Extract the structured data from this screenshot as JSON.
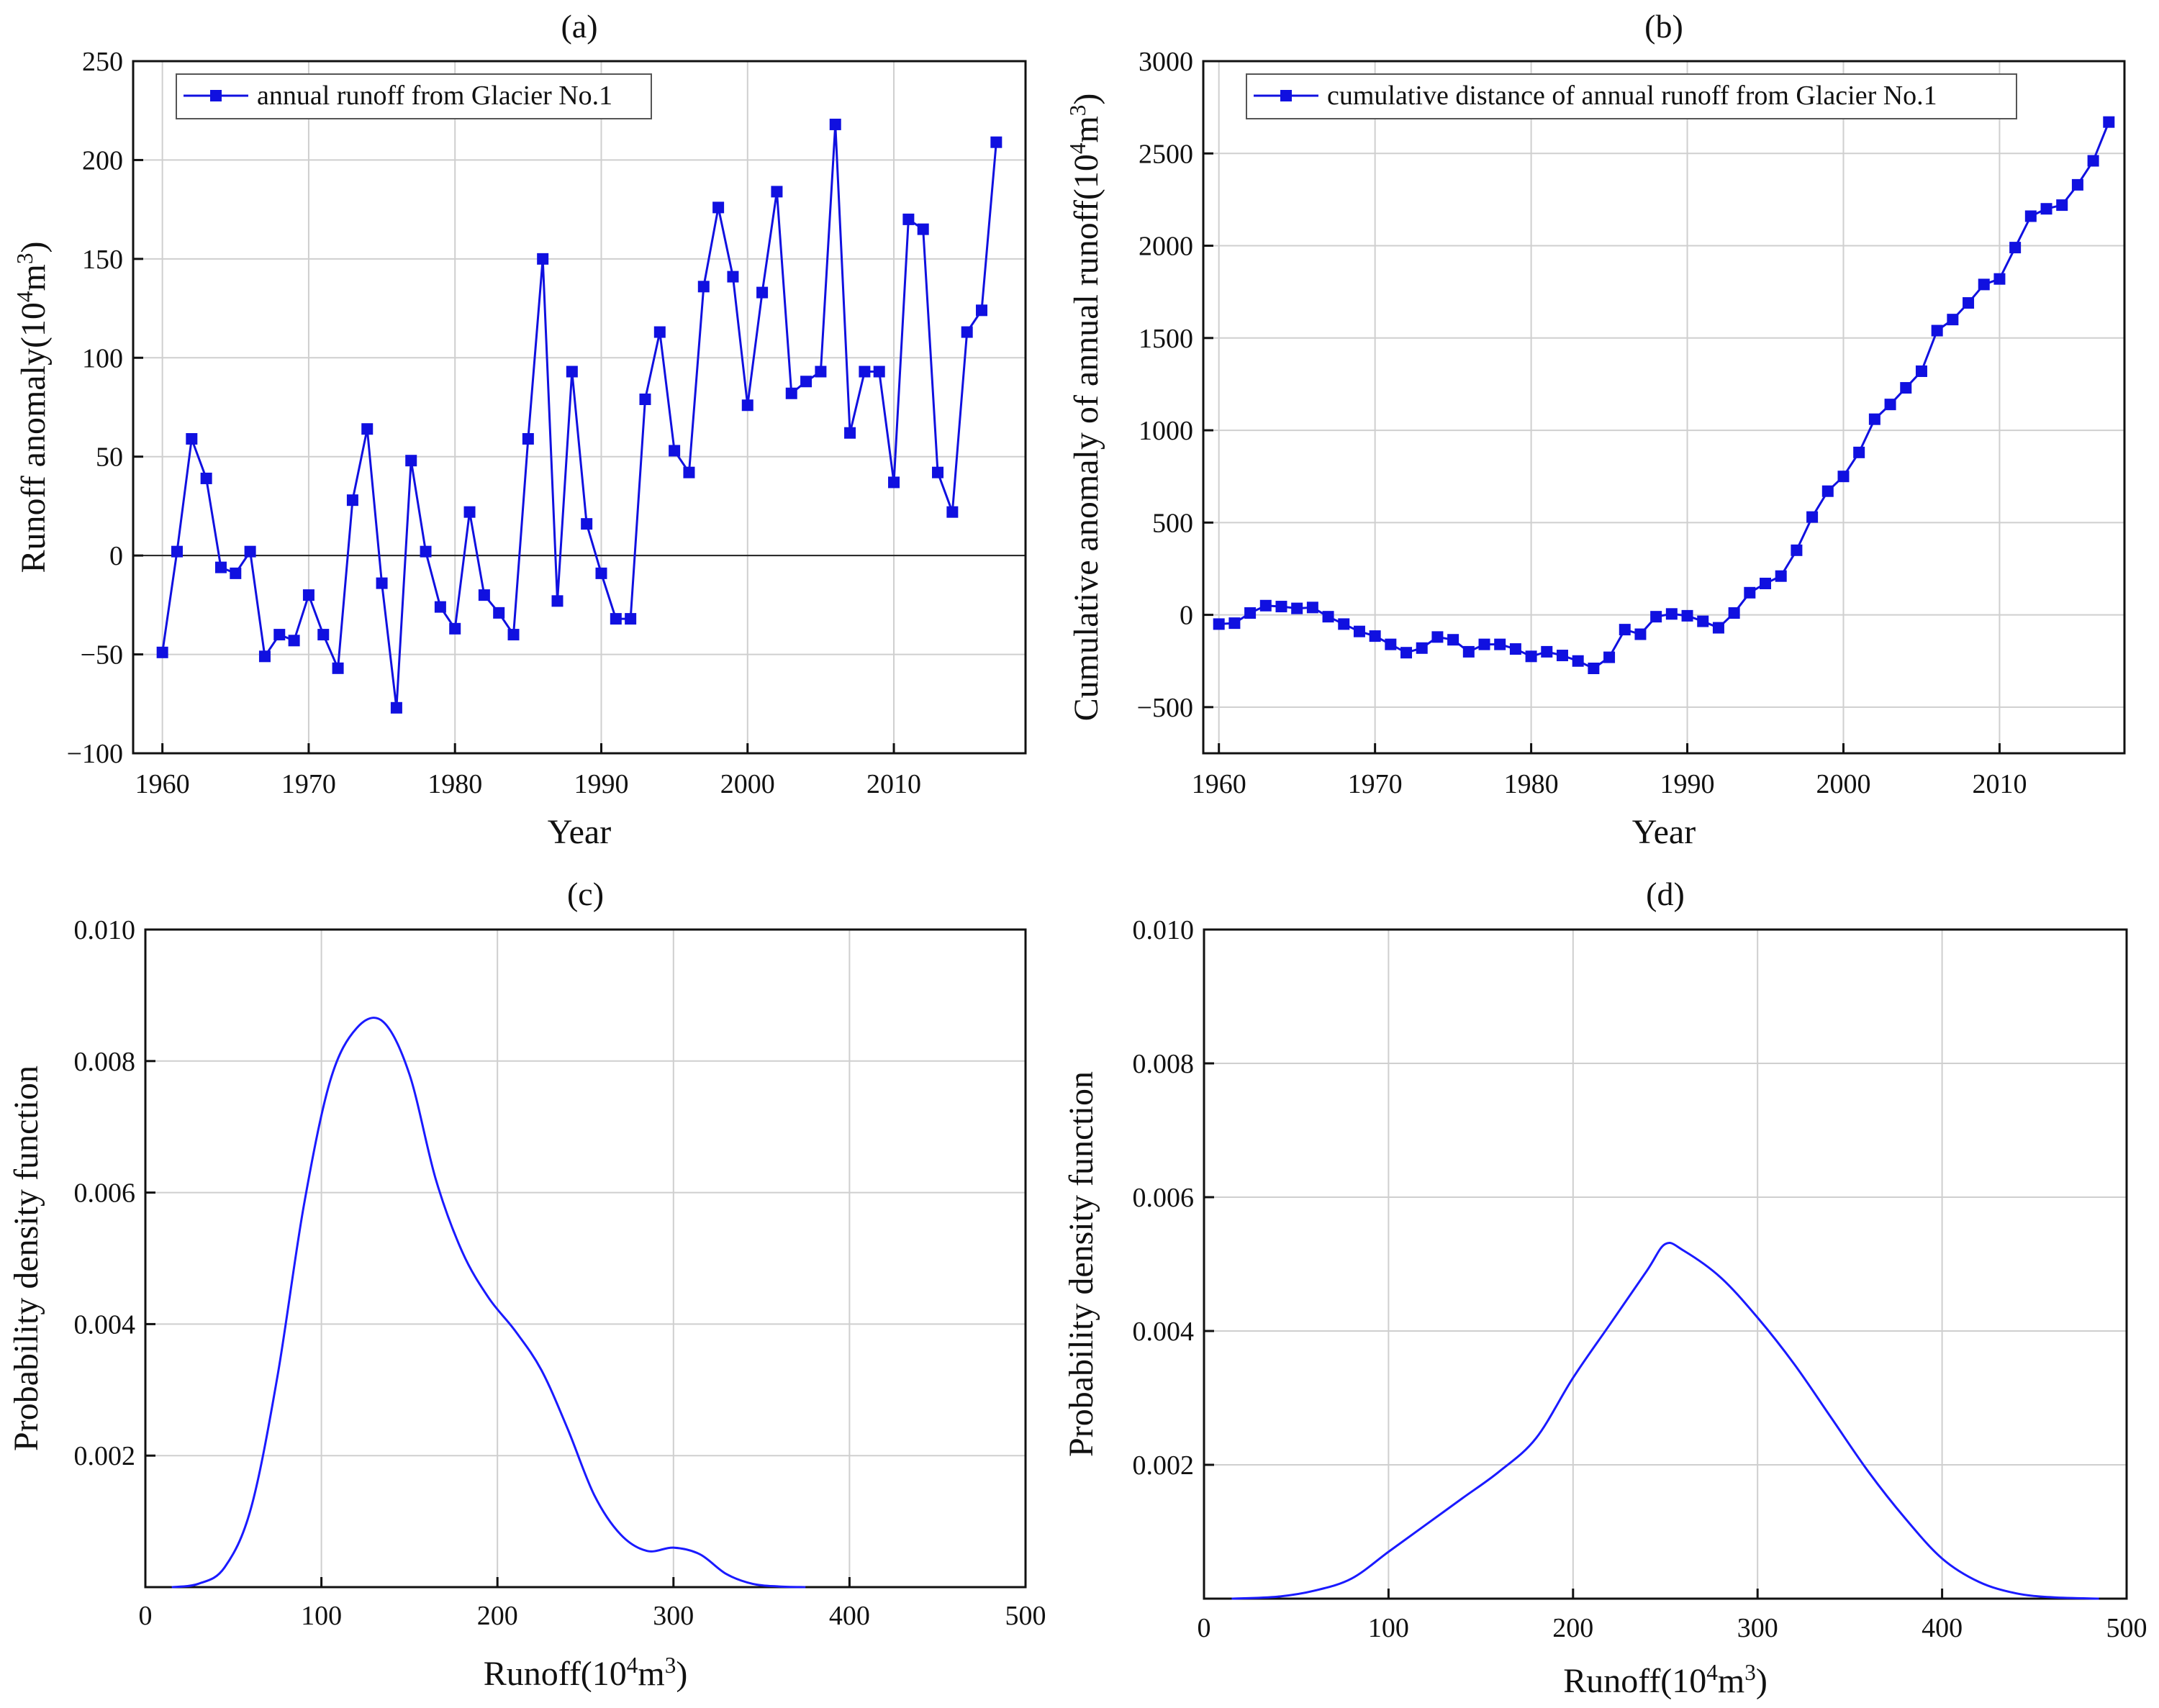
{
  "chart_data": [
    {
      "id": "a",
      "type": "line",
      "title": "(a)",
      "xlabel": "Year",
      "ylabel": "Runoff anomaly(10^4m^3)",
      "ylabel_parts": {
        "base": "Runoff anomaly(10",
        "sup1": "4",
        "mid": "m",
        "sup2": "3",
        "end": ")"
      },
      "xlim": [
        1958,
        2019
      ],
      "ylim": [
        -100,
        250
      ],
      "xticks": [
        1960,
        1970,
        1980,
        1990,
        2000,
        2010
      ],
      "yticks": [
        -100,
        -50,
        0,
        50,
        100,
        150,
        200,
        250
      ],
      "ytick_labels": [
        "−100",
        "−50",
        "0",
        "50",
        "100",
        "150",
        "200",
        "250"
      ],
      "grid": true,
      "zero_line": true,
      "legend": {
        "label": "annual runoff from Glacier No.1",
        "position": "top-left"
      },
      "color": "#1010e0",
      "x": [
        1960,
        1961,
        1962,
        1963,
        1964,
        1965,
        1966,
        1967,
        1968,
        1969,
        1970,
        1971,
        1972,
        1973,
        1974,
        1975,
        1976,
        1977,
        1978,
        1979,
        1980,
        1981,
        1982,
        1983,
        1984,
        1985,
        1986,
        1987,
        1988,
        1989,
        1990,
        1991,
        1992,
        1993,
        1994,
        1995,
        1996,
        1997,
        1998,
        1999,
        2000,
        2001,
        2002,
        2003,
        2004,
        2005,
        2006,
        2007,
        2008,
        2009,
        2010,
        2011,
        2012,
        2013,
        2014,
        2015,
        2016,
        2017
      ],
      "values": [
        -49,
        2,
        59,
        39,
        -6,
        -9,
        2,
        -51,
        -40,
        -43,
        -20,
        -40,
        -57,
        28,
        64,
        -14,
        -77,
        48,
        2,
        -26,
        -37,
        22,
        -20,
        -29,
        -40,
        59,
        150,
        -23,
        93,
        16,
        -9,
        -32,
        -32,
        79,
        113,
        53,
        42,
        136,
        176,
        141,
        76,
        133,
        184,
        82,
        88,
        93,
        218,
        62,
        93,
        93,
        37,
        170,
        165,
        42,
        22,
        113,
        124,
        209
      ]
    },
    {
      "id": "b",
      "type": "line",
      "title": "(b)",
      "xlabel": "Year",
      "ylabel": "Cumulative anomaly of annual runoff(10^4m^3)",
      "ylabel_parts": {
        "base": "Cumulative anomaly of annual runoff(10",
        "sup1": "4",
        "mid": "m",
        "sup2": "3",
        "end": ")"
      },
      "xlim": [
        1959,
        2018
      ],
      "ylim": [
        -750,
        3000
      ],
      "xticks": [
        1960,
        1970,
        1980,
        1990,
        2000,
        2010
      ],
      "yticks": [
        -500,
        0,
        500,
        1000,
        1500,
        2000,
        2500,
        3000
      ],
      "ytick_labels": [
        "−500",
        "0",
        "500",
        "1000",
        "1500",
        "2000",
        "2500",
        "3000"
      ],
      "grid": true,
      "legend": {
        "label": "cumulative distance of annual runoff from Glacier No.1",
        "position": "top-left"
      },
      "color": "#1010e0",
      "x": [
        1960,
        1961,
        1962,
        1963,
        1964,
        1965,
        1966,
        1967,
        1968,
        1969,
        1970,
        1971,
        1972,
        1973,
        1974,
        1975,
        1976,
        1977,
        1978,
        1979,
        1980,
        1981,
        1982,
        1983,
        1984,
        1985,
        1986,
        1987,
        1988,
        1989,
        1990,
        1991,
        1992,
        1993,
        1994,
        1995,
        1996,
        1997,
        1998,
        1999,
        2000,
        2001,
        2002,
        2003,
        2004,
        2005,
        2006,
        2007,
        2008,
        2009,
        2010,
        2011,
        2012,
        2013,
        2014,
        2015,
        2016,
        2017
      ],
      "values": [
        -50,
        -45,
        10,
        50,
        45,
        35,
        40,
        -10,
        -50,
        -90,
        -115,
        -160,
        -205,
        -180,
        -120,
        -135,
        -200,
        -160,
        -160,
        -185,
        -225,
        -200,
        -220,
        -250,
        -290,
        -230,
        -80,
        -105,
        -10,
        5,
        -5,
        -35,
        -70,
        10,
        120,
        170,
        210,
        350,
        530,
        670,
        750,
        880,
        1060,
        1140,
        1230,
        1320,
        1540,
        1600,
        1690,
        1790,
        1820,
        1990,
        2160,
        2200,
        2220,
        2330,
        2460,
        2670
      ]
    },
    {
      "id": "c",
      "type": "line",
      "title": "(c)",
      "xlabel": "Runoff(10^4m^3)",
      "xlabel_parts": {
        "base": "Runoff(10",
        "sup1": "4",
        "mid": "m",
        "sup2": "3",
        "end": ")"
      },
      "ylabel": "Probability density function",
      "xlim": [
        0,
        500
      ],
      "ylim": [
        0,
        0.01
      ],
      "xticks": [
        0,
        100,
        200,
        300,
        400,
        500
      ],
      "yticks": [
        0.002,
        0.004,
        0.006,
        0.008,
        0.01
      ],
      "ytick_labels": [
        "0.002",
        "0.004",
        "0.006",
        "0.008",
        "0.010"
      ],
      "grid": true,
      "color": "#1a1aff",
      "x": [
        15,
        30,
        45,
        60,
        75,
        90,
        105,
        120,
        135,
        150,
        165,
        180,
        195,
        210,
        225,
        240,
        255,
        270,
        285,
        300,
        315,
        330,
        345,
        360,
        375
      ],
      "values": [
        0.0,
        5e-05,
        0.0003,
        0.0012,
        0.0032,
        0.0058,
        0.0077,
        0.0085,
        0.0086,
        0.0078,
        0.0062,
        0.0051,
        0.0044,
        0.0039,
        0.0033,
        0.0024,
        0.0014,
        0.0008,
        0.00055,
        0.0006,
        0.0005,
        0.0002,
        5e-05,
        1e-05,
        0.0
      ]
    },
    {
      "id": "d",
      "type": "line",
      "title": "(d)",
      "xlabel": "Runoff(10^4m^3)",
      "xlabel_parts": {
        "base": "Runoff(10",
        "sup1": "4",
        "mid": "m",
        "sup2": "3",
        "end": ")"
      },
      "ylabel": "Probability density function",
      "xlim": [
        0,
        500
      ],
      "ylim": [
        0,
        0.01
      ],
      "xticks": [
        0,
        100,
        200,
        300,
        400,
        500
      ],
      "yticks": [
        0.002,
        0.004,
        0.006,
        0.008,
        0.01
      ],
      "ytick_labels": [
        "0.002",
        "0.004",
        "0.006",
        "0.008",
        "0.010"
      ],
      "grid": true,
      "color": "#1a1aff",
      "x": [
        15,
        40,
        60,
        80,
        100,
        120,
        140,
        160,
        180,
        200,
        220,
        240,
        250,
        260,
        280,
        300,
        320,
        340,
        360,
        380,
        400,
        420,
        440,
        460,
        485
      ],
      "values": [
        0.0,
        3e-05,
        0.00012,
        0.0003,
        0.0007,
        0.0011,
        0.0015,
        0.0019,
        0.0024,
        0.0033,
        0.0041,
        0.0049,
        0.0053,
        0.0052,
        0.0048,
        0.0042,
        0.0035,
        0.0027,
        0.0019,
        0.0012,
        0.0006,
        0.00025,
        8e-05,
        2e-05,
        0.0
      ]
    }
  ]
}
